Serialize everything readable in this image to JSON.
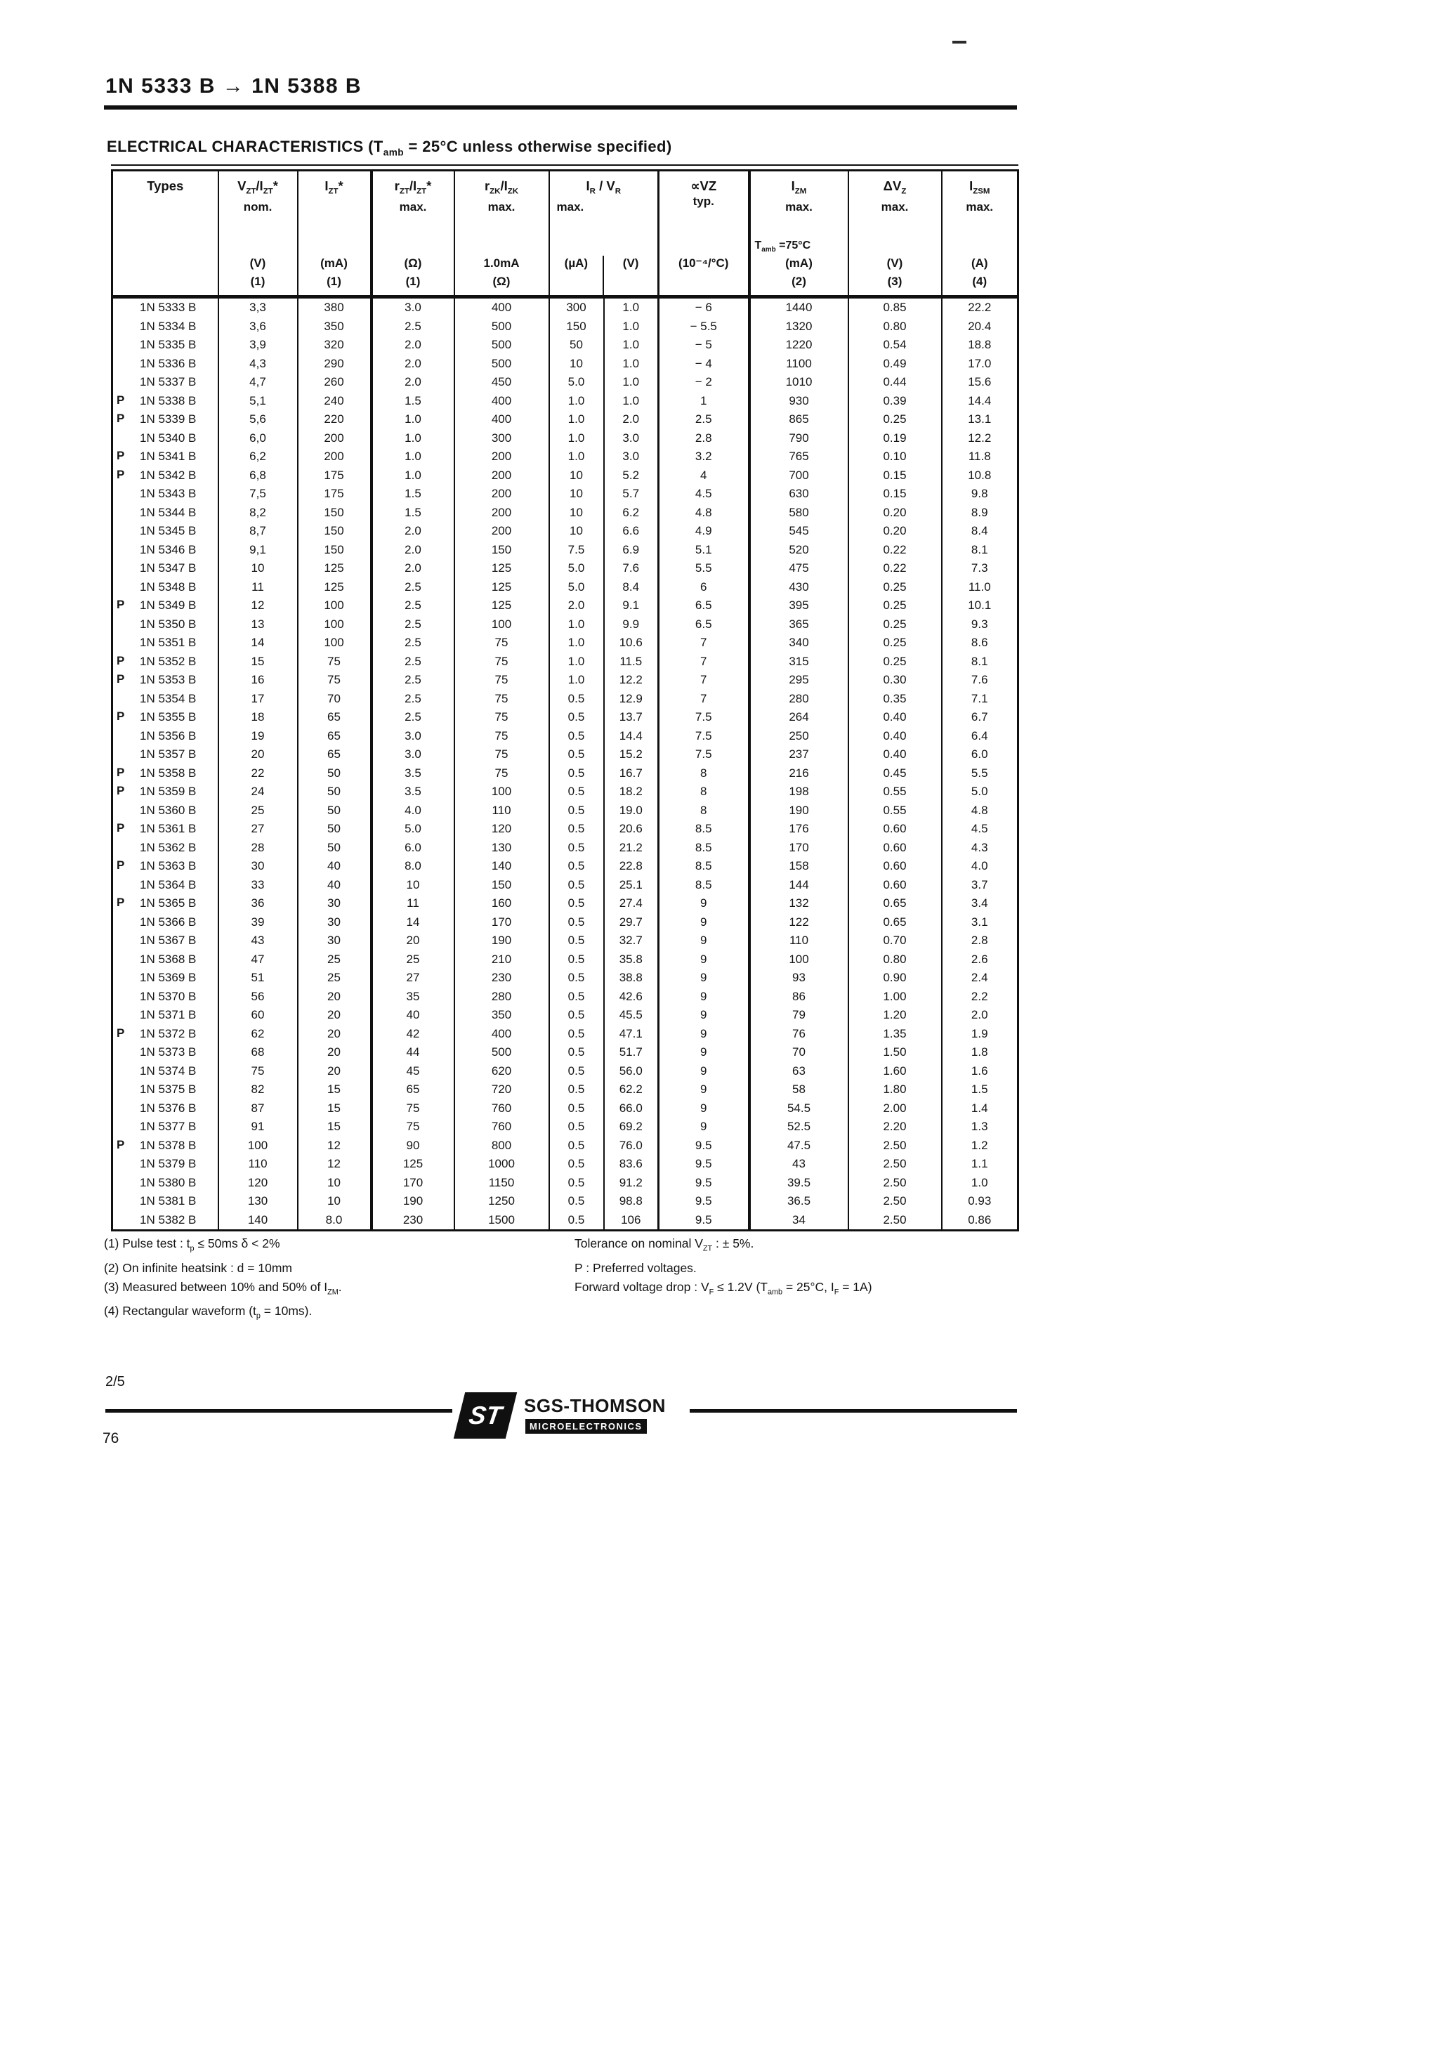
{
  "page": {
    "title": "1N 5333 B → 1N 5388 B",
    "section_heading": "ELECTRICAL  CHARACTERISTICS (T~amb~ = 25°C unless otherwise specified)"
  },
  "table": {
    "columns": [
      {
        "label": "Types",
        "sub": "",
        "extra": "",
        "unit": "",
        "note": ""
      },
      {
        "label": "V~ZT~/I~ZT~*",
        "sub": "nom.",
        "extra": "",
        "unit": "(V)",
        "note": "(1)"
      },
      {
        "label": "I~ZT~*",
        "sub": "",
        "extra": "",
        "unit": "(mA)",
        "note": "(1)"
      },
      {
        "label": "r~ZT~/I~ZT~*",
        "sub": "max.",
        "extra": "",
        "unit": "(Ω)",
        "note": "(1)"
      },
      {
        "label": "r~ZK~/I~ZK~",
        "sub": "max.",
        "extra": "",
        "unit": "1.0mA",
        "note": "(Ω)"
      },
      {
        "label": "I~R~ / V~R~",
        "sub": "max.",
        "extra": "",
        "unit": "(µA)",
        "unit2": "(V)",
        "note": ""
      },
      {
        "label": "∝VZ",
        "sub": "typ.",
        "extra": "",
        "unit": "(10⁻⁴/°C)",
        "note": ""
      },
      {
        "label": "I~ZM~",
        "sub": "max.",
        "extra": "T~amb~ =75°C",
        "unit": "(mA)",
        "note": "(2)"
      },
      {
        "label": "ΔV~Z~",
        "sub": "max.",
        "extra": "",
        "unit": "(V)",
        "note": "(3)"
      },
      {
        "label": "I~ZSM~",
        "sub": "max.",
        "extra": "",
        "unit": "(A)",
        "note": "(4)"
      }
    ],
    "rows": [
      [
        "",
        "1N 5333 B",
        "3,3",
        "380",
        "3.0",
        "400",
        "300",
        "1.0",
        "− 6",
        "1440",
        "0.85",
        "22.2"
      ],
      [
        "",
        "1N 5334 B",
        "3,6",
        "350",
        "2.5",
        "500",
        "150",
        "1.0",
        "− 5.5",
        "1320",
        "0.80",
        "20.4"
      ],
      [
        "",
        "1N 5335 B",
        "3,9",
        "320",
        "2.0",
        "500",
        "50",
        "1.0",
        "− 5",
        "1220",
        "0.54",
        "18.8"
      ],
      [
        "",
        "1N 5336 B",
        "4,3",
        "290",
        "2.0",
        "500",
        "10",
        "1.0",
        "− 4",
        "1100",
        "0.49",
        "17.0"
      ],
      [
        "",
        "1N 5337 B",
        "4,7",
        "260",
        "2.0",
        "450",
        "5.0",
        "1.0",
        "− 2",
        "1010",
        "0.44",
        "15.6"
      ],
      [
        "P",
        "1N 5338 B",
        "5,1",
        "240",
        "1.5",
        "400",
        "1.0",
        "1.0",
        "1",
        "930",
        "0.39",
        "14.4"
      ],
      [
        "P",
        "1N 5339 B",
        "5,6",
        "220",
        "1.0",
        "400",
        "1.0",
        "2.0",
        "2.5",
        "865",
        "0.25",
        "13.1"
      ],
      [
        "",
        "1N 5340 B",
        "6,0",
        "200",
        "1.0",
        "300",
        "1.0",
        "3.0",
        "2.8",
        "790",
        "0.19",
        "12.2"
      ],
      [
        "P",
        "1N 5341 B",
        "6,2",
        "200",
        "1.0",
        "200",
        "1.0",
        "3.0",
        "3.2",
        "765",
        "0.10",
        "11.8"
      ],
      [
        "P",
        "1N 5342 B",
        "6,8",
        "175",
        "1.0",
        "200",
        "10",
        "5.2",
        "4",
        "700",
        "0.15",
        "10.8"
      ],
      [
        "",
        "1N 5343 B",
        "7,5",
        "175",
        "1.5",
        "200",
        "10",
        "5.7",
        "4.5",
        "630",
        "0.15",
        "9.8"
      ],
      [
        "",
        "1N 5344 B",
        "8,2",
        "150",
        "1.5",
        "200",
        "10",
        "6.2",
        "4.8",
        "580",
        "0.20",
        "8.9"
      ],
      [
        "",
        "1N 5345 B",
        "8,7",
        "150",
        "2.0",
        "200",
        "10",
        "6.6",
        "4.9",
        "545",
        "0.20",
        "8.4"
      ],
      [
        "",
        "1N 5346 B",
        "9,1",
        "150",
        "2.0",
        "150",
        "7.5",
        "6.9",
        "5.1",
        "520",
        "0.22",
        "8.1"
      ],
      [
        "",
        "1N 5347 B",
        "10",
        "125",
        "2.0",
        "125",
        "5.0",
        "7.6",
        "5.5",
        "475",
        "0.22",
        "7.3"
      ],
      [
        "",
        "1N 5348 B",
        "11",
        "125",
        "2.5",
        "125",
        "5.0",
        "8.4",
        "6",
        "430",
        "0.25",
        "11.0"
      ],
      [
        "P",
        "1N 5349 B",
        "12",
        "100",
        "2.5",
        "125",
        "2.0",
        "9.1",
        "6.5",
        "395",
        "0.25",
        "10.1"
      ],
      [
        "",
        "1N 5350 B",
        "13",
        "100",
        "2.5",
        "100",
        "1.0",
        "9.9",
        "6.5",
        "365",
        "0.25",
        "9.3"
      ],
      [
        "",
        "1N 5351 B",
        "14",
        "100",
        "2.5",
        "75",
        "1.0",
        "10.6",
        "7",
        "340",
        "0.25",
        "8.6"
      ],
      [
        "P",
        "1N 5352 B",
        "15",
        "75",
        "2.5",
        "75",
        "1.0",
        "11.5",
        "7",
        "315",
        "0.25",
        "8.1"
      ],
      [
        "P",
        "1N 5353 B",
        "16",
        "75",
        "2.5",
        "75",
        "1.0",
        "12.2",
        "7",
        "295",
        "0.30",
        "7.6"
      ],
      [
        "",
        "1N 5354 B",
        "17",
        "70",
        "2.5",
        "75",
        "0.5",
        "12.9",
        "7",
        "280",
        "0.35",
        "7.1"
      ],
      [
        "P",
        "1N 5355 B",
        "18",
        "65",
        "2.5",
        "75",
        "0.5",
        "13.7",
        "7.5",
        "264",
        "0.40",
        "6.7"
      ],
      [
        "",
        "1N 5356 B",
        "19",
        "65",
        "3.0",
        "75",
        "0.5",
        "14.4",
        "7.5",
        "250",
        "0.40",
        "6.4"
      ],
      [
        "",
        "1N 5357 B",
        "20",
        "65",
        "3.0",
        "75",
        "0.5",
        "15.2",
        "7.5",
        "237",
        "0.40",
        "6.0"
      ],
      [
        "P",
        "1N 5358 B",
        "22",
        "50",
        "3.5",
        "75",
        "0.5",
        "16.7",
        "8",
        "216",
        "0.45",
        "5.5"
      ],
      [
        "P",
        "1N 5359 B",
        "24",
        "50",
        "3.5",
        "100",
        "0.5",
        "18.2",
        "8",
        "198",
        "0.55",
        "5.0"
      ],
      [
        "",
        "1N 5360 B",
        "25",
        "50",
        "4.0",
        "110",
        "0.5",
        "19.0",
        "8",
        "190",
        "0.55",
        "4.8"
      ],
      [
        "P",
        "1N 5361 B",
        "27",
        "50",
        "5.0",
        "120",
        "0.5",
        "20.6",
        "8.5",
        "176",
        "0.60",
        "4.5"
      ],
      [
        "",
        "1N 5362 B",
        "28",
        "50",
        "6.0",
        "130",
        "0.5",
        "21.2",
        "8.5",
        "170",
        "0.60",
        "4.3"
      ],
      [
        "P",
        "1N 5363 B",
        "30",
        "40",
        "8.0",
        "140",
        "0.5",
        "22.8",
        "8.5",
        "158",
        "0.60",
        "4.0"
      ],
      [
        "",
        "1N 5364 B",
        "33",
        "40",
        "10",
        "150",
        "0.5",
        "25.1",
        "8.5",
        "144",
        "0.60",
        "3.7"
      ],
      [
        "P",
        "1N 5365 B",
        "36",
        "30",
        "11",
        "160",
        "0.5",
        "27.4",
        "9",
        "132",
        "0.65",
        "3.4"
      ],
      [
        "",
        "1N 5366 B",
        "39",
        "30",
        "14",
        "170",
        "0.5",
        "29.7",
        "9",
        "122",
        "0.65",
        "3.1"
      ],
      [
        "",
        "1N 5367 B",
        "43",
        "30",
        "20",
        "190",
        "0.5",
        "32.7",
        "9",
        "110",
        "0.70",
        "2.8"
      ],
      [
        "",
        "1N 5368 B",
        "47",
        "25",
        "25",
        "210",
        "0.5",
        "35.8",
        "9",
        "100",
        "0.80",
        "2.6"
      ],
      [
        "",
        "1N 5369 B",
        "51",
        "25",
        "27",
        "230",
        "0.5",
        "38.8",
        "9",
        "93",
        "0.90",
        "2.4"
      ],
      [
        "",
        "1N 5370 B",
        "56",
        "20",
        "35",
        "280",
        "0.5",
        "42.6",
        "9",
        "86",
        "1.00",
        "2.2"
      ],
      [
        "",
        "1N 5371 B",
        "60",
        "20",
        "40",
        "350",
        "0.5",
        "45.5",
        "9",
        "79",
        "1.20",
        "2.0"
      ],
      [
        "P",
        "1N 5372 B",
        "62",
        "20",
        "42",
        "400",
        "0.5",
        "47.1",
        "9",
        "76",
        "1.35",
        "1.9"
      ],
      [
        "",
        "1N 5373 B",
        "68",
        "20",
        "44",
        "500",
        "0.5",
        "51.7",
        "9",
        "70",
        "1.50",
        "1.8"
      ],
      [
        "",
        "1N 5374 B",
        "75",
        "20",
        "45",
        "620",
        "0.5",
        "56.0",
        "9",
        "63",
        "1.60",
        "1.6"
      ],
      [
        "",
        "1N 5375 B",
        "82",
        "15",
        "65",
        "720",
        "0.5",
        "62.2",
        "9",
        "58",
        "1.80",
        "1.5"
      ],
      [
        "",
        "1N 5376 B",
        "87",
        "15",
        "75",
        "760",
        "0.5",
        "66.0",
        "9",
        "54.5",
        "2.00",
        "1.4"
      ],
      [
        "",
        "1N 5377 B",
        "91",
        "15",
        "75",
        "760",
        "0.5",
        "69.2",
        "9",
        "52.5",
        "2.20",
        "1.3"
      ],
      [
        "P",
        "1N 5378 B",
        "100",
        "12",
        "90",
        "800",
        "0.5",
        "76.0",
        "9.5",
        "47.5",
        "2.50",
        "1.2"
      ],
      [
        "",
        "1N 5379 B",
        "110",
        "12",
        "125",
        "1000",
        "0.5",
        "83.6",
        "9.5",
        "43",
        "2.50",
        "1.1"
      ],
      [
        "",
        "1N 5380 B",
        "120",
        "10",
        "170",
        "1150",
        "0.5",
        "91.2",
        "9.5",
        "39.5",
        "2.50",
        "1.0"
      ],
      [
        "",
        "1N 5381 B",
        "130",
        "10",
        "190",
        "1250",
        "0.5",
        "98.8",
        "9.5",
        "36.5",
        "2.50",
        "0.93"
      ],
      [
        "",
        "1N 5382 B",
        "140",
        "8.0",
        "230",
        "1500",
        "0.5",
        "106",
        "9.5",
        "34",
        "2.50",
        "0.86"
      ]
    ]
  },
  "footnotes_left": [
    "(1) Pulse test : t~p~ ≤ 50ms   δ < 2%",
    "(2) On infinite heatsink : d = 10mm",
    "(3) Measured between 10% and 50% of I~ZM~.",
    "(4) Rectangular waveform (t~p~ = 10ms)."
  ],
  "footnotes_right": [
    "Tolerance on nominal V~ZT~ : ± 5%.",
    "P : Preferred voltages.",
    "Forward voltage drop : V~F~ ≤ 1.2V (T~amb~ = 25°C, I~F~ = 1A)"
  ],
  "footer": {
    "page_indicator": "2/5",
    "logo_monogram": "ST",
    "brand_name": "SGS-THOMSON",
    "brand_sub": "MICROELECTRONICS",
    "page_number": "76"
  }
}
